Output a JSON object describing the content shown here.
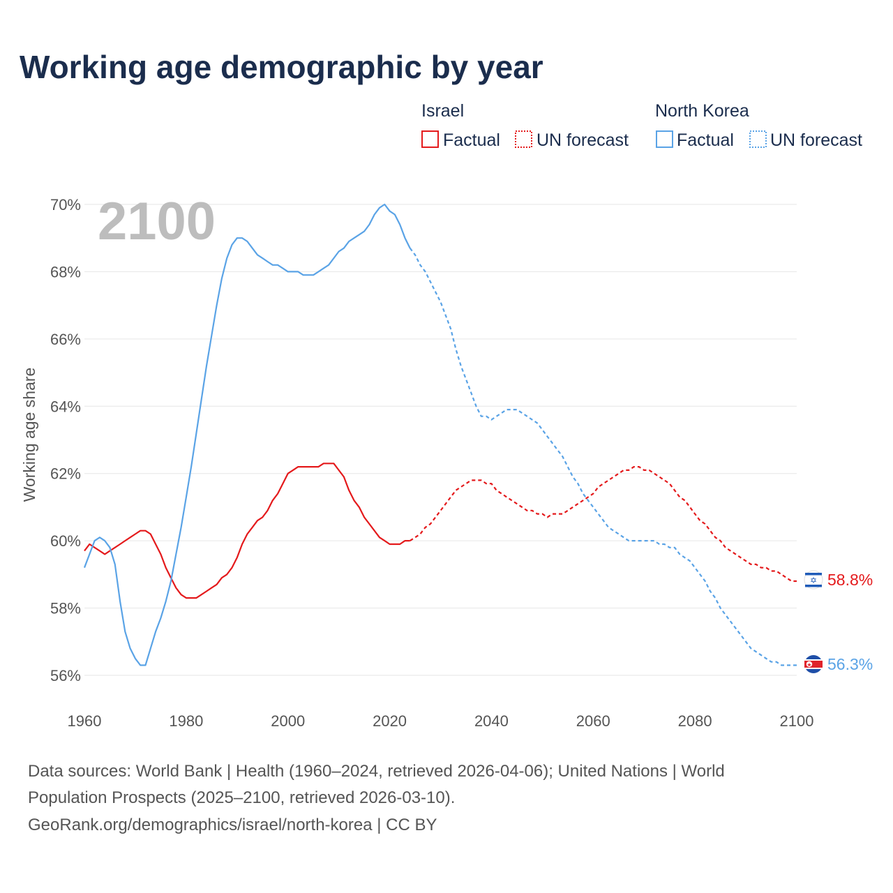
{
  "title": "Working age demographic by year",
  "highlight_year": "2100",
  "legend": {
    "groups": [
      {
        "name": "Israel",
        "color": "#e41a1c",
        "factual_label": "Factual",
        "forecast_label": "UN forecast"
      },
      {
        "name": "North Korea",
        "color": "#5aa3e6",
        "factual_label": "Factual",
        "forecast_label": "UN forecast"
      }
    ]
  },
  "end_labels": {
    "israel": "58.8%",
    "north_korea": "56.3%"
  },
  "sources": {
    "line1": "Data sources: World Bank | Health (1960–2024, retrieved 2026-04-06); United Nations | World",
    "line2": "Population Prospects (2025–2100, retrieved 2026-03-10).",
    "line3": "GeoRank.org/demographics/israel/north-korea | CC BY"
  },
  "chart_data": {
    "type": "line",
    "title": "Working age demographic by year",
    "xlabel": "",
    "ylabel": "Working age share",
    "xlim": [
      1960,
      2100
    ],
    "ylim": [
      55,
      70.5
    ],
    "x_ticks": [
      1960,
      1980,
      2000,
      2020,
      2040,
      2060,
      2080,
      2100
    ],
    "y_ticks": [
      56,
      58,
      60,
      62,
      64,
      66,
      68,
      70
    ],
    "y_tick_labels": [
      "56%",
      "58%",
      "60%",
      "62%",
      "64%",
      "66%",
      "68%",
      "70%"
    ],
    "forecast_start": 2024,
    "series": [
      {
        "name": "Israel",
        "color": "#e41a1c",
        "points": [
          [
            1960,
            59.7
          ],
          [
            1961,
            59.9
          ],
          [
            1962,
            59.8
          ],
          [
            1963,
            59.7
          ],
          [
            1964,
            59.6
          ],
          [
            1965,
            59.7
          ],
          [
            1966,
            59.8
          ],
          [
            1967,
            59.9
          ],
          [
            1968,
            60.0
          ],
          [
            1969,
            60.1
          ],
          [
            1970,
            60.2
          ],
          [
            1971,
            60.3
          ],
          [
            1972,
            60.3
          ],
          [
            1973,
            60.2
          ],
          [
            1974,
            59.9
          ],
          [
            1975,
            59.6
          ],
          [
            1976,
            59.2
          ],
          [
            1977,
            58.9
          ],
          [
            1978,
            58.6
          ],
          [
            1979,
            58.4
          ],
          [
            1980,
            58.3
          ],
          [
            1981,
            58.3
          ],
          [
            1982,
            58.3
          ],
          [
            1983,
            58.4
          ],
          [
            1984,
            58.5
          ],
          [
            1985,
            58.6
          ],
          [
            1986,
            58.7
          ],
          [
            1987,
            58.9
          ],
          [
            1988,
            59.0
          ],
          [
            1989,
            59.2
          ],
          [
            1990,
            59.5
          ],
          [
            1991,
            59.9
          ],
          [
            1992,
            60.2
          ],
          [
            1993,
            60.4
          ],
          [
            1994,
            60.6
          ],
          [
            1995,
            60.7
          ],
          [
            1996,
            60.9
          ],
          [
            1997,
            61.2
          ],
          [
            1998,
            61.4
          ],
          [
            1999,
            61.7
          ],
          [
            2000,
            62.0
          ],
          [
            2001,
            62.1
          ],
          [
            2002,
            62.2
          ],
          [
            2003,
            62.2
          ],
          [
            2004,
            62.2
          ],
          [
            2005,
            62.2
          ],
          [
            2006,
            62.2
          ],
          [
            2007,
            62.3
          ],
          [
            2008,
            62.3
          ],
          [
            2009,
            62.3
          ],
          [
            2010,
            62.1
          ],
          [
            2011,
            61.9
          ],
          [
            2012,
            61.5
          ],
          [
            2013,
            61.2
          ],
          [
            2014,
            61.0
          ],
          [
            2015,
            60.7
          ],
          [
            2016,
            60.5
          ],
          [
            2017,
            60.3
          ],
          [
            2018,
            60.1
          ],
          [
            2019,
            60.0
          ],
          [
            2020,
            59.9
          ],
          [
            2021,
            59.9
          ],
          [
            2022,
            59.9
          ],
          [
            2023,
            60.0
          ],
          [
            2024,
            60.0
          ],
          [
            2025,
            60.1
          ],
          [
            2026,
            60.2
          ],
          [
            2027,
            60.4
          ],
          [
            2028,
            60.5
          ],
          [
            2029,
            60.7
          ],
          [
            2030,
            60.9
          ],
          [
            2031,
            61.1
          ],
          [
            2032,
            61.3
          ],
          [
            2033,
            61.5
          ],
          [
            2034,
            61.6
          ],
          [
            2035,
            61.7
          ],
          [
            2036,
            61.8
          ],
          [
            2037,
            61.8
          ],
          [
            2038,
            61.8
          ],
          [
            2039,
            61.7
          ],
          [
            2040,
            61.7
          ],
          [
            2041,
            61.5
          ],
          [
            2042,
            61.4
          ],
          [
            2043,
            61.3
          ],
          [
            2044,
            61.2
          ],
          [
            2045,
            61.1
          ],
          [
            2046,
            61.0
          ],
          [
            2047,
            60.9
          ],
          [
            2048,
            60.9
          ],
          [
            2049,
            60.8
          ],
          [
            2050,
            60.8
          ],
          [
            2051,
            60.7
          ],
          [
            2052,
            60.8
          ],
          [
            2053,
            60.8
          ],
          [
            2054,
            60.8
          ],
          [
            2055,
            60.9
          ],
          [
            2056,
            61.0
          ],
          [
            2057,
            61.1
          ],
          [
            2058,
            61.2
          ],
          [
            2059,
            61.3
          ],
          [
            2060,
            61.4
          ],
          [
            2061,
            61.6
          ],
          [
            2062,
            61.7
          ],
          [
            2063,
            61.8
          ],
          [
            2064,
            61.9
          ],
          [
            2065,
            62.0
          ],
          [
            2066,
            62.1
          ],
          [
            2067,
            62.1
          ],
          [
            2068,
            62.2
          ],
          [
            2069,
            62.2
          ],
          [
            2070,
            62.1
          ],
          [
            2071,
            62.1
          ],
          [
            2072,
            62.0
          ],
          [
            2073,
            61.9
          ],
          [
            2074,
            61.8
          ],
          [
            2075,
            61.7
          ],
          [
            2076,
            61.5
          ],
          [
            2077,
            61.3
          ],
          [
            2078,
            61.2
          ],
          [
            2079,
            61.0
          ],
          [
            2080,
            60.8
          ],
          [
            2081,
            60.6
          ],
          [
            2082,
            60.5
          ],
          [
            2083,
            60.3
          ],
          [
            2084,
            60.1
          ],
          [
            2085,
            60.0
          ],
          [
            2086,
            59.8
          ],
          [
            2087,
            59.7
          ],
          [
            2088,
            59.6
          ],
          [
            2089,
            59.5
          ],
          [
            2090,
            59.4
          ],
          [
            2091,
            59.3
          ],
          [
            2092,
            59.3
          ],
          [
            2093,
            59.2
          ],
          [
            2094,
            59.2
          ],
          [
            2095,
            59.1
          ],
          [
            2096,
            59.1
          ],
          [
            2097,
            59.0
          ],
          [
            2098,
            58.9
          ],
          [
            2099,
            58.8
          ],
          [
            2100,
            58.8
          ]
        ]
      },
      {
        "name": "North Korea",
        "color": "#5aa3e6",
        "points": [
          [
            1960,
            59.2
          ],
          [
            1961,
            59.6
          ],
          [
            1962,
            60.0
          ],
          [
            1963,
            60.1
          ],
          [
            1964,
            60.0
          ],
          [
            1965,
            59.8
          ],
          [
            1966,
            59.3
          ],
          [
            1967,
            58.2
          ],
          [
            1968,
            57.3
          ],
          [
            1969,
            56.8
          ],
          [
            1970,
            56.5
          ],
          [
            1971,
            56.3
          ],
          [
            1972,
            56.3
          ],
          [
            1973,
            56.8
          ],
          [
            1974,
            57.3
          ],
          [
            1975,
            57.7
          ],
          [
            1976,
            58.2
          ],
          [
            1977,
            58.8
          ],
          [
            1978,
            59.6
          ],
          [
            1979,
            60.4
          ],
          [
            1980,
            61.3
          ],
          [
            1981,
            62.2
          ],
          [
            1982,
            63.2
          ],
          [
            1983,
            64.2
          ],
          [
            1984,
            65.2
          ],
          [
            1985,
            66.1
          ],
          [
            1986,
            67.0
          ],
          [
            1987,
            67.8
          ],
          [
            1988,
            68.4
          ],
          [
            1989,
            68.8
          ],
          [
            1990,
            69.0
          ],
          [
            1991,
            69.0
          ],
          [
            1992,
            68.9
          ],
          [
            1993,
            68.7
          ],
          [
            1994,
            68.5
          ],
          [
            1995,
            68.4
          ],
          [
            1996,
            68.3
          ],
          [
            1997,
            68.2
          ],
          [
            1998,
            68.2
          ],
          [
            1999,
            68.1
          ],
          [
            2000,
            68.0
          ],
          [
            2001,
            68.0
          ],
          [
            2002,
            68.0
          ],
          [
            2003,
            67.9
          ],
          [
            2004,
            67.9
          ],
          [
            2005,
            67.9
          ],
          [
            2006,
            68.0
          ],
          [
            2007,
            68.1
          ],
          [
            2008,
            68.2
          ],
          [
            2009,
            68.4
          ],
          [
            2010,
            68.6
          ],
          [
            2011,
            68.7
          ],
          [
            2012,
            68.9
          ],
          [
            2013,
            69.0
          ],
          [
            2014,
            69.1
          ],
          [
            2015,
            69.2
          ],
          [
            2016,
            69.4
          ],
          [
            2017,
            69.7
          ],
          [
            2018,
            69.9
          ],
          [
            2019,
            70.0
          ],
          [
            2020,
            69.8
          ],
          [
            2021,
            69.7
          ],
          [
            2022,
            69.4
          ],
          [
            2023,
            69.0
          ],
          [
            2024,
            68.7
          ],
          [
            2025,
            68.5
          ],
          [
            2026,
            68.2
          ],
          [
            2027,
            68.0
          ],
          [
            2028,
            67.7
          ],
          [
            2029,
            67.4
          ],
          [
            2030,
            67.1
          ],
          [
            2031,
            66.7
          ],
          [
            2032,
            66.3
          ],
          [
            2033,
            65.7
          ],
          [
            2034,
            65.2
          ],
          [
            2035,
            64.8
          ],
          [
            2036,
            64.4
          ],
          [
            2037,
            64.0
          ],
          [
            2038,
            63.7
          ],
          [
            2039,
            63.7
          ],
          [
            2040,
            63.6
          ],
          [
            2041,
            63.7
          ],
          [
            2042,
            63.8
          ],
          [
            2043,
            63.9
          ],
          [
            2044,
            63.9
          ],
          [
            2045,
            63.9
          ],
          [
            2046,
            63.8
          ],
          [
            2047,
            63.7
          ],
          [
            2048,
            63.6
          ],
          [
            2049,
            63.5
          ],
          [
            2050,
            63.3
          ],
          [
            2051,
            63.1
          ],
          [
            2052,
            62.9
          ],
          [
            2053,
            62.7
          ],
          [
            2054,
            62.5
          ],
          [
            2055,
            62.2
          ],
          [
            2056,
            61.9
          ],
          [
            2057,
            61.7
          ],
          [
            2058,
            61.4
          ],
          [
            2059,
            61.2
          ],
          [
            2060,
            61.0
          ],
          [
            2061,
            60.8
          ],
          [
            2062,
            60.6
          ],
          [
            2063,
            60.4
          ],
          [
            2064,
            60.3
          ],
          [
            2065,
            60.2
          ],
          [
            2066,
            60.1
          ],
          [
            2067,
            60.0
          ],
          [
            2068,
            60.0
          ],
          [
            2069,
            60.0
          ],
          [
            2070,
            60.0
          ],
          [
            2071,
            60.0
          ],
          [
            2072,
            60.0
          ],
          [
            2073,
            59.9
          ],
          [
            2074,
            59.9
          ],
          [
            2075,
            59.8
          ],
          [
            2076,
            59.8
          ],
          [
            2077,
            59.6
          ],
          [
            2078,
            59.5
          ],
          [
            2079,
            59.4
          ],
          [
            2080,
            59.2
          ],
          [
            2081,
            59.0
          ],
          [
            2082,
            58.8
          ],
          [
            2083,
            58.5
          ],
          [
            2084,
            58.3
          ],
          [
            2085,
            58.0
          ],
          [
            2086,
            57.8
          ],
          [
            2087,
            57.6
          ],
          [
            2088,
            57.4
          ],
          [
            2089,
            57.2
          ],
          [
            2090,
            57.0
          ],
          [
            2091,
            56.8
          ],
          [
            2092,
            56.7
          ],
          [
            2093,
            56.6
          ],
          [
            2094,
            56.5
          ],
          [
            2095,
            56.4
          ],
          [
            2096,
            56.4
          ],
          [
            2097,
            56.3
          ],
          [
            2098,
            56.3
          ],
          [
            2099,
            56.3
          ],
          [
            2100,
            56.3
          ]
        ]
      }
    ]
  }
}
